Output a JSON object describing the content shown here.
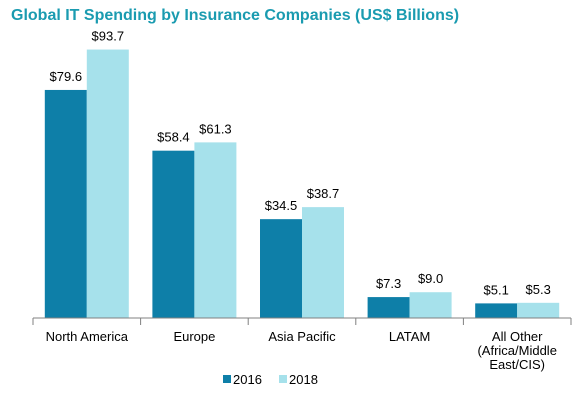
{
  "chart_data": {
    "type": "bar",
    "title": "Global IT Spending by Insurance Companies (US$ Billions)",
    "xlabel": "",
    "ylabel": "",
    "ylim": [
      0,
      100
    ],
    "grid": false,
    "legend_position": "bottom",
    "categories": [
      [
        "North America"
      ],
      [
        "Europe"
      ],
      [
        "Asia Pacific"
      ],
      [
        "LATAM"
      ],
      [
        "All Other",
        "(Africa/Middle",
        "East/CIS)"
      ]
    ],
    "series": [
      {
        "name": "2016",
        "color": "#0e7fa8",
        "values": [
          79.6,
          58.4,
          34.5,
          7.3,
          5.1
        ],
        "labels": [
          "$79.6",
          "$58.4",
          "$34.5",
          "$7.3",
          "$5.1"
        ]
      },
      {
        "name": "2018",
        "color": "#a6e1eb",
        "values": [
          93.7,
          61.3,
          38.7,
          9.0,
          5.3
        ],
        "labels": [
          "$93.7",
          "$61.3",
          "$38.7",
          "$9.0",
          "$5.3"
        ]
      }
    ]
  }
}
